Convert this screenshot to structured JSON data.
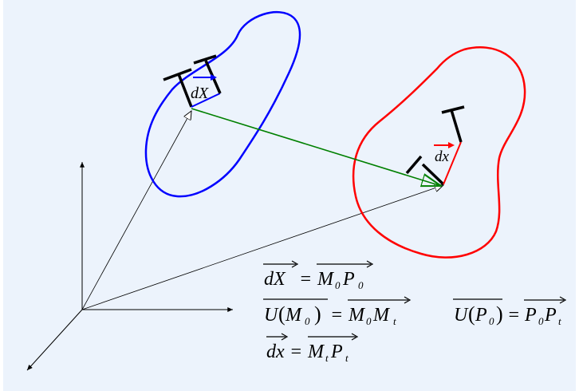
{
  "colors": {
    "background": "#ECF3FC",
    "reference_body": "#0000FF",
    "deformed_body": "#FF0000",
    "displacement": "#008000",
    "axes": "#000000"
  },
  "labels": {
    "dX": "dX",
    "dx": "dx"
  },
  "equations": {
    "eq1": {
      "lhs": "dX",
      "rhs_main": "M",
      "rhs_sub1": "0",
      "rhs_main2": "P",
      "rhs_sub2": "0"
    },
    "eq2": {
      "func": "U",
      "arg_main": "M",
      "arg_sub": "0",
      "rhs_main": "M",
      "rhs_sub1": "0",
      "rhs_main2": "M",
      "rhs_sub2": "t"
    },
    "eq3": {
      "func": "U",
      "arg_main": "P",
      "arg_sub": "0",
      "rhs_main": "P",
      "rhs_sub1": "0",
      "rhs_main2": "P",
      "rhs_sub2": "t"
    },
    "eq4": {
      "lhs": "dx",
      "rhs_main": "M",
      "rhs_sub1": "t",
      "rhs_main2": "P",
      "rhs_sub2": "t"
    },
    "equals": "="
  }
}
